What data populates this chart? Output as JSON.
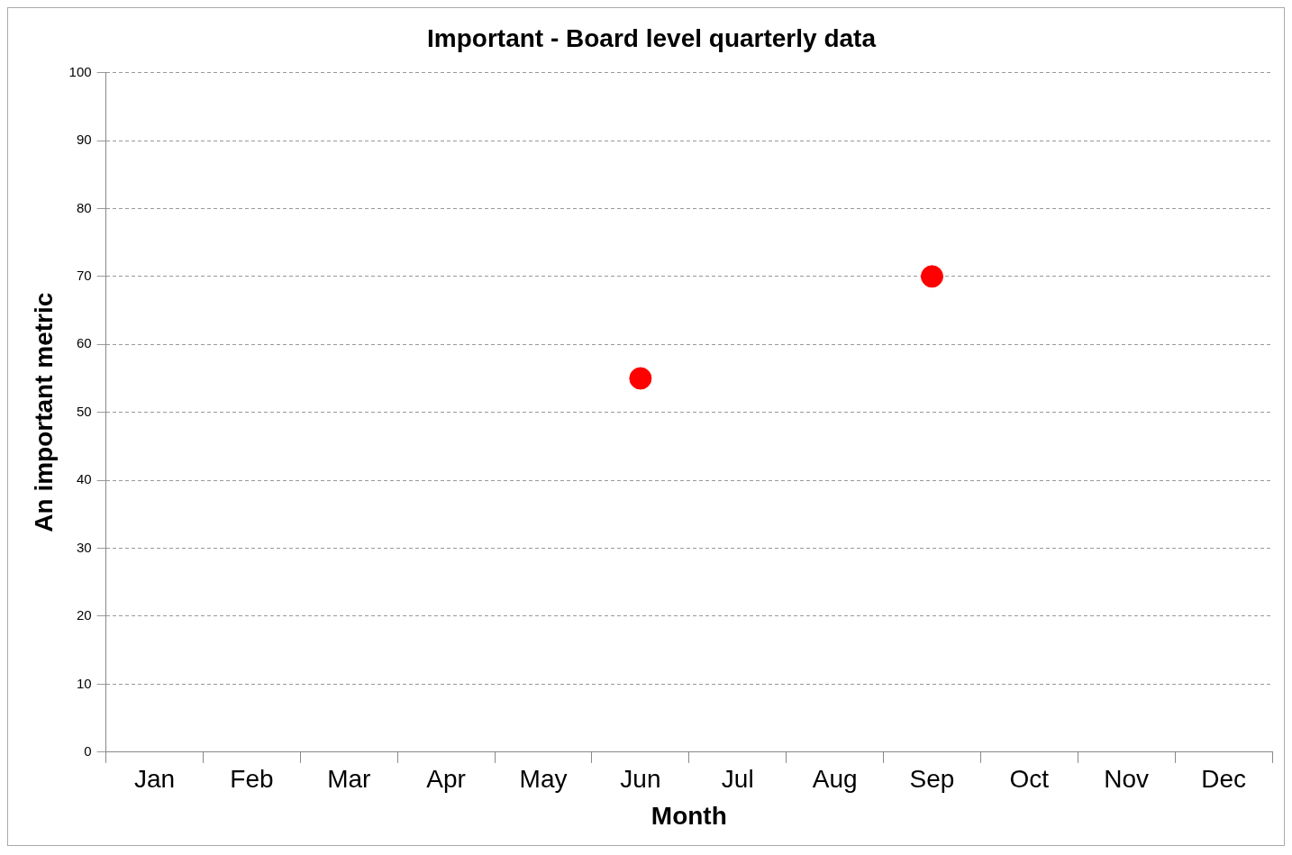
{
  "chart_data": {
    "type": "scatter",
    "title": "Important - Board level quarterly data",
    "xlabel": "Month",
    "ylabel": "An important metric",
    "categories": [
      "Jan",
      "Feb",
      "Mar",
      "Apr",
      "May",
      "Jun",
      "Jul",
      "Aug",
      "Sep",
      "Oct",
      "Nov",
      "Dec"
    ],
    "series": [
      {
        "color": "#ff0000",
        "values": [
          null,
          null,
          null,
          null,
          null,
          55,
          null,
          null,
          70,
          null,
          null,
          null
        ]
      }
    ],
    "ylim": [
      0,
      100
    ],
    "yticks": [
      0,
      10,
      20,
      30,
      40,
      50,
      60,
      70,
      80,
      90,
      100
    ],
    "grid": "y",
    "legend": false,
    "marker": "circle"
  }
}
